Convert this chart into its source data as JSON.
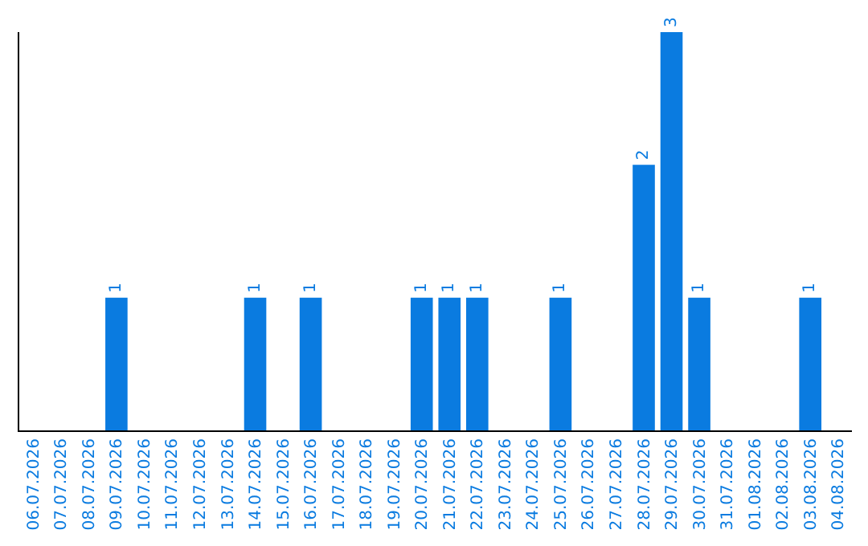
{
  "chart_data": {
    "type": "bar",
    "categories": [
      "06.07.2026",
      "07.07.2026",
      "08.07.2026",
      "09.07.2026",
      "10.07.2026",
      "11.07.2026",
      "12.07.2026",
      "13.07.2026",
      "14.07.2026",
      "15.07.2026",
      "16.07.2026",
      "17.07.2026",
      "18.07.2026",
      "19.07.2026",
      "20.07.2026",
      "21.07.2026",
      "22.07.2026",
      "23.07.2026",
      "24.07.2026",
      "25.07.2026",
      "26.07.2026",
      "27.07.2026",
      "28.07.2026",
      "29.07.2026",
      "30.07.2026",
      "31.07.2026",
      "01.08.2026",
      "02.08.2026",
      "03.08.2026",
      "04.08.2026"
    ],
    "values": [
      0,
      0,
      0,
      1,
      0,
      0,
      0,
      0,
      1,
      0,
      1,
      0,
      0,
      0,
      1,
      1,
      1,
      0,
      0,
      1,
      0,
      0,
      2,
      3,
      1,
      0,
      0,
      0,
      1,
      0
    ],
    "value_labels": [
      null,
      null,
      null,
      "1",
      null,
      null,
      null,
      null,
      "1",
      null,
      "1",
      null,
      null,
      null,
      "1",
      "1",
      "1",
      null,
      null,
      "1",
      null,
      null,
      "2",
      "3",
      "1",
      null,
      null,
      null,
      "1",
      null
    ],
    "color": "#0a7be0",
    "tick_labels": "x"
  }
}
